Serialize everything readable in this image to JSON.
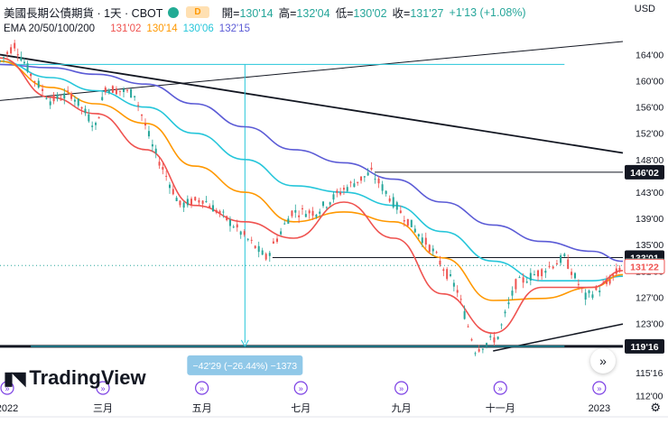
{
  "header": {
    "title": "美國長期公債期貨 · 1天 · CBOT",
    "badge": "D",
    "ohlc": [
      {
        "label": "開=",
        "value": "130'14"
      },
      {
        "label": "高=",
        "value": "132'04"
      },
      {
        "label": "低=",
        "value": "130'02"
      },
      {
        "label": "收=",
        "value": "131'27"
      },
      {
        "label": "",
        "value": "+1'13 (+1.08%)"
      }
    ],
    "currency": "USD",
    "ema_label": "EMA 20/50/100/200",
    "ema_values": [
      {
        "value": "131'02",
        "color": "#ef5350"
      },
      {
        "value": "130'14",
        "color": "#ff9800"
      },
      {
        "value": "130'06",
        "color": "#26c6da"
      },
      {
        "value": "132'15",
        "color": "#5b5bd6"
      }
    ]
  },
  "logo": "TradingView",
  "settings_icon": "gear-icon",
  "scroll_icon": "double-chevron-right-icon",
  "chart_data": {
    "type": "line",
    "title": "美國長期公債期貨 · 1天 · CBOT",
    "y_axis": {
      "ticks": [
        "164'00",
        "160'00",
        "156'00",
        "152'00",
        "148'00",
        "143'00",
        "139'00",
        "135'00",
        "131'00",
        "127'00",
        "123'00",
        "119'00",
        "115'16",
        "112'00"
      ],
      "min": 111.5,
      "max": 166
    },
    "x_axis": {
      "ticks": [
        "2022",
        "三月",
        "五月",
        "七月",
        "九月",
        "十一月",
        "2023"
      ],
      "range": [
        "2022-01-01",
        "2023-01-20"
      ]
    },
    "price_labels": [
      {
        "text": "146'02",
        "value": 146.06,
        "style": "dark"
      },
      {
        "text": "133'01",
        "value": 133.03,
        "style": "dark"
      },
      {
        "text": "131'27",
        "value": 131.84,
        "style": "teal"
      },
      {
        "text": "131'22",
        "value": 131.69,
        "style": "red-outline"
      },
      {
        "text": "119'16",
        "value": 119.5,
        "style": "dark"
      }
    ],
    "measure_label": "−42'29 (−26.44%) −1373",
    "series": [
      {
        "name": "EMA 20",
        "color": "#ef5350",
        "x": [
          "2022-01-01",
          "2022-02-01",
          "2022-03-01",
          "2022-04-01",
          "2022-05-01",
          "2022-06-01",
          "2022-07-01",
          "2022-08-01",
          "2022-09-01",
          "2022-10-01",
          "2022-11-01",
          "2022-12-01",
          "2023-01-01",
          "2023-01-20"
        ],
        "y": [
          163.5,
          157.5,
          155.0,
          149.5,
          141.0,
          138.5,
          136.0,
          141.5,
          136.0,
          127.5,
          121.5,
          128.5,
          128.5,
          131.06
        ]
      },
      {
        "name": "EMA 50",
        "color": "#ff9800",
        "x": [
          "2022-01-01",
          "2022-02-01",
          "2022-03-01",
          "2022-04-01",
          "2022-05-01",
          "2022-06-01",
          "2022-07-01",
          "2022-08-01",
          "2022-09-01",
          "2022-10-01",
          "2022-11-01",
          "2022-12-01",
          "2023-01-01",
          "2023-01-20"
        ],
        "y": [
          163.0,
          159.0,
          156.5,
          153.5,
          147.0,
          143.0,
          138.5,
          140.0,
          138.5,
          133.0,
          126.5,
          126.8,
          128.5,
          130.44
        ]
      },
      {
        "name": "EMA 100",
        "color": "#26c6da",
        "x": [
          "2022-01-01",
          "2022-02-01",
          "2022-03-01",
          "2022-04-01",
          "2022-05-01",
          "2022-06-01",
          "2022-07-01",
          "2022-08-01",
          "2022-09-01",
          "2022-10-01",
          "2022-11-01",
          "2022-12-01",
          "2023-01-01",
          "2023-01-20"
        ],
        "y": [
          163.0,
          160.5,
          158.5,
          156.0,
          152.0,
          148.0,
          144.0,
          143.0,
          141.0,
          137.0,
          132.5,
          129.5,
          129.5,
          130.19
        ]
      },
      {
        "name": "EMA 200",
        "color": "#5b5bd6",
        "x": [
          "2022-01-01",
          "2022-02-01",
          "2022-03-01",
          "2022-04-01",
          "2022-05-01",
          "2022-06-01",
          "2022-07-01",
          "2022-08-01",
          "2022-09-01",
          "2022-10-01",
          "2022-11-01",
          "2022-12-01",
          "2023-01-01",
          "2023-01-20"
        ],
        "y": [
          162.5,
          162.0,
          161.0,
          159.5,
          156.5,
          153.0,
          149.5,
          147.5,
          145.0,
          141.5,
          138.0,
          135.5,
          134.0,
          132.47
        ]
      }
    ],
    "price_path": {
      "x": [
        "2022-01-01",
        "2022-01-10",
        "2022-01-20",
        "2022-02-01",
        "2022-02-14",
        "2022-03-01",
        "2022-03-07",
        "2022-03-25",
        "2022-04-05",
        "2022-04-22",
        "2022-05-06",
        "2022-05-25",
        "2022-06-14",
        "2022-06-30",
        "2022-07-15",
        "2022-08-01",
        "2022-08-18",
        "2022-09-05",
        "2022-09-25",
        "2022-10-10",
        "2022-10-21",
        "2022-11-04",
        "2022-11-15",
        "2022-12-01",
        "2022-12-15",
        "2022-12-28",
        "2023-01-10",
        "2023-01-20"
      ],
      "y": [
        163,
        165.5,
        161,
        157,
        158,
        153,
        159,
        158,
        150,
        141,
        142,
        138,
        133,
        140,
        140,
        143.5,
        146,
        140,
        134,
        128,
        119,
        121,
        129,
        131,
        133,
        127,
        129,
        131.84
      ]
    },
    "trendlines": [
      {
        "from": [
          "2022-01-01",
          157
        ],
        "to": [
          "2023-01-20",
          166
        ]
      },
      {
        "from": [
          "2022-01-01",
          164
        ],
        "to": [
          "2023-01-20",
          149
        ]
      },
      {
        "from": [
          "2022-01-01",
          119.5
        ],
        "to": [
          "2023-01-20",
          119.5
        ]
      },
      {
        "from": [
          "2022-11-01",
          118.8
        ],
        "to": [
          "2023-01-20",
          122.9
        ]
      }
    ]
  }
}
